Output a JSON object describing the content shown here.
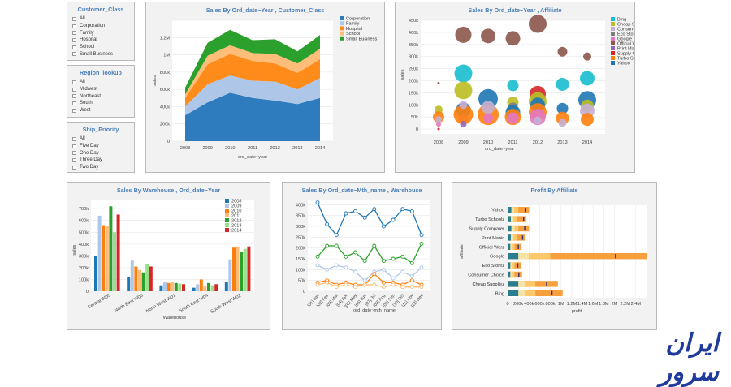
{
  "filters": [
    {
      "title": "Customer_Class",
      "items": [
        "All",
        "Corporation",
        "Family",
        "Hospital",
        "School",
        "Small Business"
      ]
    },
    {
      "title": "Region_lookup",
      "items": [
        "All",
        "Midwest",
        "Northeast",
        "South",
        "West"
      ]
    },
    {
      "title": "Ship_Priority",
      "items": [
        "All",
        "Five Day",
        "One Day",
        "Three Day",
        "Two Day"
      ]
    }
  ],
  "logo_text": "ایران سرور",
  "chart_data": [
    {
      "id": "area",
      "type": "area",
      "title": "Sales By Ord_date~Year , Customer_Class",
      "xlabel": "ord_date~year",
      "ylabel": "sales",
      "x": [
        "2008",
        "2009",
        "2010",
        "2011",
        "2012",
        "2013",
        "2014"
      ],
      "ylim": [
        0,
        1400000
      ],
      "yticks": [
        "0",
        "200k",
        "400k",
        "600k",
        "800k",
        "1M",
        "1.2M"
      ],
      "colors": [
        "#2e7bbd",
        "#aec7e8",
        "#ff8c1a",
        "#ffbd7a",
        "#2ca02c"
      ],
      "series": [
        {
          "name": "Corporation",
          "values": [
            300000,
            450000,
            560000,
            500000,
            470000,
            430000,
            500000
          ]
        },
        {
          "name": "Family",
          "values": [
            100000,
            210000,
            200000,
            200000,
            220000,
            170000,
            230000
          ]
        },
        {
          "name": "Hospital",
          "values": [
            100000,
            230000,
            250000,
            230000,
            210000,
            190000,
            220000
          ]
        },
        {
          "name": "School",
          "values": [
            40000,
            100000,
            100000,
            90000,
            110000,
            110000,
            120000
          ]
        },
        {
          "name": "Small Business",
          "values": [
            80000,
            150000,
            180000,
            150000,
            170000,
            140000,
            160000
          ]
        }
      ]
    },
    {
      "id": "bubble",
      "type": "scatter",
      "title": "Sales By Ord_date~Year , Affiliate",
      "xlabel": "ord_date~year",
      "ylabel": "sales",
      "x": [
        "2008",
        "2009",
        "2010",
        "2011",
        "2012",
        "2013",
        "2014"
      ],
      "ylim": [
        0,
        470000
      ],
      "yticks": [
        "0",
        "50k",
        "100k",
        "150k",
        "200k",
        "250k",
        "300k",
        "350k",
        "400k",
        "450k"
      ],
      "legend": [
        "Bing",
        "Cheap Supplie",
        "Consumer Cho",
        "Eco Storez",
        "Google",
        "Official Warz",
        "Print Manic",
        "Supply Compar",
        "Turbo Schoolz",
        "Yahoo"
      ],
      "colors": [
        "#17becf",
        "#bcbd22",
        "#c5b0d5",
        "#7f7f7f",
        "#e377c2",
        "#8c564b",
        "#9467bd",
        "#d62728",
        "#ff7f0e",
        "#1f77b4"
      ],
      "points": [
        {
          "s": 5,
          "x": "2008",
          "y": 210000,
          "r": 1.5
        },
        {
          "s": 1,
          "x": "2008",
          "y": 100000,
          "r": 5
        },
        {
          "s": 8,
          "x": "2008",
          "y": 70000,
          "r": 7
        },
        {
          "s": 2,
          "x": "2008",
          "y": 60000,
          "r": 4
        },
        {
          "s": 4,
          "x": "2008",
          "y": 40000,
          "r": 3
        },
        {
          "s": 7,
          "x": "2008",
          "y": 20000,
          "r": 1.5
        },
        {
          "s": 5,
          "x": "2009",
          "y": 410000,
          "r": 10
        },
        {
          "s": 0,
          "x": "2009",
          "y": 250000,
          "r": 11
        },
        {
          "s": 1,
          "x": "2009",
          "y": 180000,
          "r": 11
        },
        {
          "s": 9,
          "x": "2009",
          "y": 100000,
          "r": 9
        },
        {
          "s": 4,
          "x": "2009",
          "y": 60000,
          "r": 6
        },
        {
          "s": 8,
          "x": "2009",
          "y": 80000,
          "r": 12
        },
        {
          "s": 2,
          "x": "2009",
          "y": 120000,
          "r": 5
        },
        {
          "s": 6,
          "x": "2009",
          "y": 40000,
          "r": 4
        },
        {
          "s": 5,
          "x": "2010",
          "y": 405000,
          "r": 9
        },
        {
          "s": 9,
          "x": "2010",
          "y": 145000,
          "r": 12
        },
        {
          "s": 8,
          "x": "2010",
          "y": 80000,
          "r": 13
        },
        {
          "s": 2,
          "x": "2010",
          "y": 110000,
          "r": 8
        },
        {
          "s": 4,
          "x": "2010",
          "y": 65000,
          "r": 6
        },
        {
          "s": 5,
          "x": "2011",
          "y": 395000,
          "r": 9
        },
        {
          "s": 0,
          "x": "2011",
          "y": 200000,
          "r": 7
        },
        {
          "s": 1,
          "x": "2011",
          "y": 130000,
          "r": 7
        },
        {
          "s": 3,
          "x": "2011",
          "y": 110000,
          "r": 6
        },
        {
          "s": 9,
          "x": "2011",
          "y": 90000,
          "r": 9
        },
        {
          "s": 8,
          "x": "2011",
          "y": 70000,
          "r": 10
        },
        {
          "s": 4,
          "x": "2011",
          "y": 65000,
          "r": 7
        },
        {
          "s": 5,
          "x": "2012",
          "y": 455000,
          "r": 11
        },
        {
          "s": 7,
          "x": "2012",
          "y": 165000,
          "r": 10
        },
        {
          "s": 3,
          "x": "2012",
          "y": 150000,
          "r": 7
        },
        {
          "s": 1,
          "x": "2012",
          "y": 135000,
          "r": 11
        },
        {
          "s": 9,
          "x": "2012",
          "y": 120000,
          "r": 9
        },
        {
          "s": 8,
          "x": "2012",
          "y": 90000,
          "r": 11
        },
        {
          "s": 4,
          "x": "2012",
          "y": 70000,
          "r": 10
        },
        {
          "s": 2,
          "x": "2012",
          "y": 55000,
          "r": 5
        },
        {
          "s": 5,
          "x": "2013",
          "y": 340000,
          "r": 6
        },
        {
          "s": 0,
          "x": "2013",
          "y": 205000,
          "r": 8
        },
        {
          "s": 9,
          "x": "2013",
          "y": 105000,
          "r": 7
        },
        {
          "s": 8,
          "x": "2013",
          "y": 65000,
          "r": 8
        },
        {
          "s": 2,
          "x": "2013",
          "y": 45000,
          "r": 5
        },
        {
          "s": 5,
          "x": "2014",
          "y": 320000,
          "r": 5
        },
        {
          "s": 0,
          "x": "2014",
          "y": 230000,
          "r": 9
        },
        {
          "s": 9,
          "x": "2014",
          "y": 140000,
          "r": 11
        },
        {
          "s": 1,
          "x": "2014",
          "y": 115000,
          "r": 8
        },
        {
          "s": 2,
          "x": "2014",
          "y": 95000,
          "r": 9
        },
        {
          "s": 8,
          "x": "2014",
          "y": 60000,
          "r": 8
        }
      ]
    },
    {
      "id": "bars",
      "type": "bar",
      "title": "Sales By Warehouse , Ord_date~Year",
      "xlabel": "Warehouse",
      "ylabel": "sales",
      "categories": [
        "Central W05",
        "North East W03",
        "North West W01",
        "South East W04",
        "South West W02"
      ],
      "ylim": [
        0,
        770000
      ],
      "yticks": [
        "0",
        "100k",
        "200k",
        "300k",
        "400k",
        "500k",
        "600k",
        "700k"
      ],
      "colors": [
        "#1f77b4",
        "#aec7e8",
        "#ff7f0e",
        "#ffbb78",
        "#2ca02c",
        "#98df8a",
        "#d62728"
      ],
      "series": [
        {
          "name": "2008",
          "values": [
            300000,
            120000,
            50000,
            30000,
            80000
          ]
        },
        {
          "name": "2009",
          "values": [
            640000,
            260000,
            75000,
            60000,
            270000
          ]
        },
        {
          "name": "2010",
          "values": [
            560000,
            210000,
            70000,
            100000,
            370000
          ]
        },
        {
          "name": "2011",
          "values": [
            550000,
            180000,
            80000,
            40000,
            380000
          ]
        },
        {
          "name": "2012",
          "values": [
            720000,
            160000,
            70000,
            70000,
            330000
          ]
        },
        {
          "name": "2013",
          "values": [
            500000,
            230000,
            65000,
            50000,
            360000
          ]
        },
        {
          "name": "2014",
          "values": [
            650000,
            210000,
            60000,
            60000,
            380000
          ]
        }
      ]
    },
    {
      "id": "lines",
      "type": "line",
      "title": "Sales By Ord_date~Mth_name , Warehouse",
      "xlabel": "ord_date~mth_name",
      "x": [
        "[01] Jan",
        "[02] Feb",
        "[03] Mar",
        "[04] Apr",
        "[05] May",
        "[06] Jun",
        "[07] Jul",
        "[08] Aug",
        "[09] Sep",
        "[10] Oct",
        "[11] Nov",
        "[12] Dec"
      ],
      "ylim": [
        0,
        420000
      ],
      "yticks": [
        "0",
        "50k",
        "100k",
        "150k",
        "200k",
        "250k",
        "300k",
        "350k",
        "400k"
      ],
      "colors": [
        "#1f77b4",
        "#2ca02c",
        "#aec7e8",
        "#ff7f0e",
        "#ffbb78"
      ],
      "series": [
        {
          "values": [
            410000,
            310000,
            260000,
            360000,
            370000,
            340000,
            380000,
            300000,
            330000,
            380000,
            370000,
            260000
          ]
        },
        {
          "values": [
            160000,
            210000,
            210000,
            160000,
            180000,
            140000,
            210000,
            140000,
            150000,
            160000,
            130000,
            220000
          ]
        },
        {
          "values": [
            120000,
            100000,
            120000,
            110000,
            90000,
            50000,
            90000,
            100000,
            60000,
            90000,
            70000,
            110000
          ]
        },
        {
          "values": [
            40000,
            50000,
            30000,
            40000,
            30000,
            30000,
            80000,
            40000,
            40000,
            30000,
            50000,
            30000
          ]
        },
        {
          "values": [
            30000,
            40000,
            20000,
            30000,
            20000,
            30000,
            30000,
            20000,
            30000,
            20000,
            20000,
            20000
          ]
        }
      ]
    },
    {
      "id": "profit",
      "type": "bar",
      "orientation": "horizontal",
      "title": "Profit By Affiliate",
      "xlabel": "profit",
      "ylabel": "affiliate",
      "categories": [
        "Yahoo",
        "Turbo Schoolz",
        "Supply Comparer",
        "Print Manic",
        "Official Warz",
        "Google",
        "Eco Storez",
        "Consumer Choice",
        "Cheap Suppliez",
        "Bing"
      ],
      "xlim": [
        0,
        2600000
      ],
      "xticks": [
        "0",
        "200k",
        "400k",
        "600k",
        "800k",
        "1M",
        "1.2M",
        "1.4M",
        "1.6M",
        "1.8M",
        "2M",
        "2.2M",
        "2.4M"
      ],
      "colors": [
        "#2a7d8e",
        "#f6e3a6",
        "#fdc86a",
        "#f79f3d",
        "#2c2c80"
      ],
      "rows": [
        {
          "bands": [
            70000,
            120000,
            200000,
            400000
          ],
          "marker": 330000
        },
        {
          "bands": [
            60000,
            100000,
            170000,
            330000
          ],
          "marker": 300000
        },
        {
          "bands": [
            70000,
            130000,
            200000,
            400000
          ],
          "marker": 320000
        },
        {
          "bands": [
            60000,
            100000,
            170000,
            320000
          ],
          "marker": 280000
        },
        {
          "bands": [
            50000,
            80000,
            130000,
            260000
          ],
          "marker": 200000
        },
        {
          "bands": [
            200000,
            400000,
            800000,
            2600000
          ],
          "marker": 2020000
        },
        {
          "bands": [
            50000,
            80000,
            130000,
            260000
          ],
          "marker": 190000
        },
        {
          "bands": [
            50000,
            80000,
            130000,
            270000
          ],
          "marker": 210000
        },
        {
          "bands": [
            200000,
            320000,
            520000,
            940000
          ],
          "marker": 730000
        },
        {
          "bands": [
            200000,
            320000,
            520000,
            1030000
          ],
          "marker": 830000
        }
      ]
    }
  ]
}
